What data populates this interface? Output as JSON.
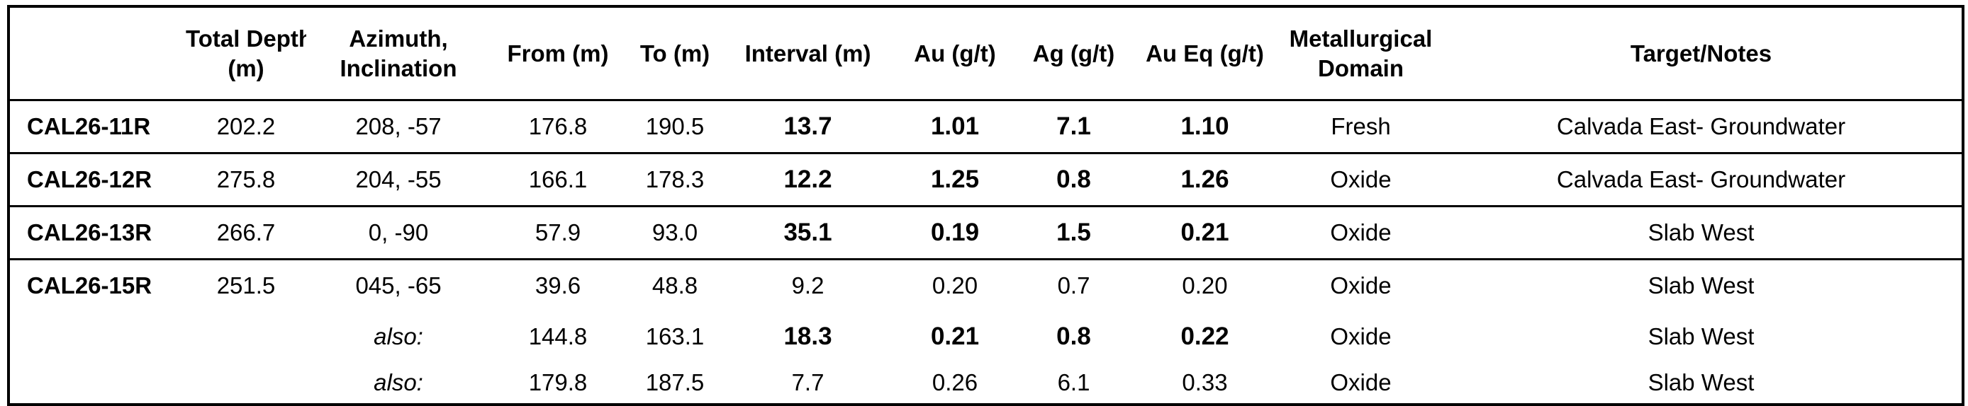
{
  "headers": {
    "hole": "",
    "total_depth": [
      "Total Depth",
      "(m)"
    ],
    "azimuth": [
      "Azimuth,",
      "Inclination"
    ],
    "from": "From (m)",
    "to": "To (m)",
    "interval": "Interval (m)",
    "au": "Au (g/t)",
    "ag": "Ag (g/t)",
    "aueq": "Au Eq (g/t)",
    "domain": [
      "Metallurgical",
      "Domain"
    ],
    "target": "Target/Notes"
  },
  "rows": [
    {
      "hole": "CAL26-11R",
      "depth": "202.2",
      "azimuth": "208, -57",
      "from": "176.8",
      "to": "190.5",
      "interval": "13.7",
      "au": "1.01",
      "ag": "7.1",
      "aueq": "1.10",
      "domain": "Fresh",
      "target": "Calvada East- Groundwater"
    },
    {
      "hole": "CAL26-12R",
      "depth": "275.8",
      "azimuth": "204, -55",
      "from": "166.1",
      "to": "178.3",
      "interval": "12.2",
      "au": "1.25",
      "ag": "0.8",
      "aueq": "1.26",
      "domain": "Oxide",
      "target": "Calvada East- Groundwater"
    },
    {
      "hole": "CAL26-13R",
      "depth": "266.7",
      "azimuth": "0, -90",
      "from": "57.9",
      "to": "93.0",
      "interval": "35.1",
      "au": "0.19",
      "ag": "1.5",
      "aueq": "0.21",
      "domain": "Oxide",
      "target": "Slab West"
    },
    {
      "hole": "CAL26-15R",
      "depth": "251.5",
      "azimuth": "045, -65",
      "from": "39.6",
      "to": "48.8",
      "interval": "9.2",
      "au": "0.20",
      "ag": "0.7",
      "aueq": "0.20",
      "domain": "Oxide",
      "target": "Slab West"
    },
    {
      "hole": "",
      "depth": "",
      "azimuth": "also:",
      "from": "144.8",
      "to": "163.1",
      "interval": "18.3",
      "au": "0.21",
      "ag": "0.8",
      "aueq": "0.22",
      "domain": "Oxide",
      "target": "Slab West"
    },
    {
      "hole": "",
      "depth": "",
      "azimuth": "also:",
      "from": "179.8",
      "to": "187.5",
      "interval": "7.7",
      "au": "0.26",
      "ag": "6.1",
      "aueq": "0.33",
      "domain": "Oxide",
      "target": "Slab West"
    }
  ]
}
